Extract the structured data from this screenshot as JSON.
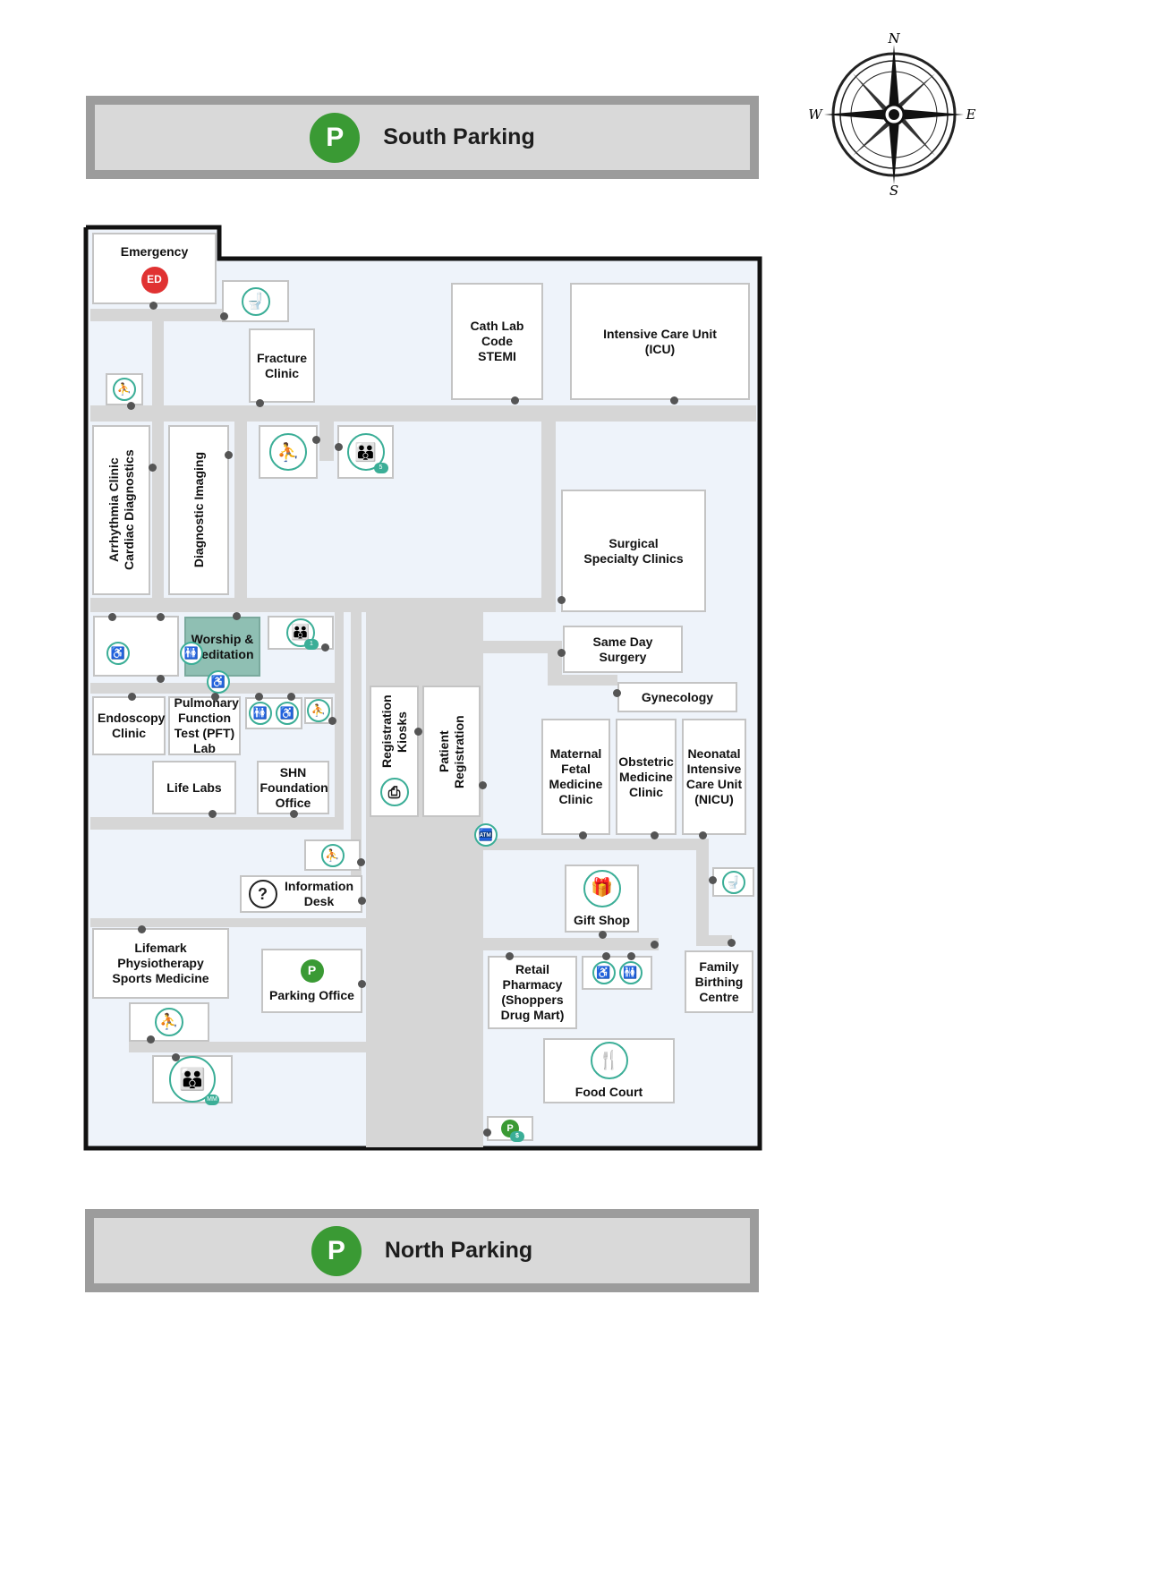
{
  "parking": {
    "south": {
      "label": "South Parking",
      "icon": "P"
    },
    "north": {
      "label": "North Parking",
      "icon": "P"
    }
  },
  "compass": {
    "n": "N",
    "s": "S",
    "e": "E",
    "w": "W"
  },
  "rooms": {
    "emergency": "Emergency",
    "ed_badge": "ED",
    "fracture": "Fracture Clinic",
    "cath_lab": "Cath Lab Code STEMI",
    "icu": "Intensive Care Unit (ICU)",
    "arrhythmia": "Arrhythmia Clinic Cardiac Diagnostics",
    "imaging": "Diagnostic Imaging",
    "surgical": "Surgical Specialty Clinics",
    "worship": "Worship & Meditation",
    "same_day": "Same Day Surgery",
    "gynecology": "Gynecology",
    "endoscopy": "Endoscopy Clinic",
    "pft": "Pulmonary Function Test (PFT) Lab",
    "reg_kiosks": "Registration Kiosks",
    "patient_reg": "Patient Registration",
    "maternal": "Maternal Fetal Medicine Clinic",
    "obstetric": "Obstetric Medicine Clinic",
    "nicu": "Neonatal Intensive Care Unit (NICU)",
    "life_labs": "Life Labs",
    "shn": "SHN Foundation Office",
    "info_desk": "Information Desk",
    "info_icon": "?",
    "gift_shop": "Gift Shop",
    "lifemark": "Lifemark Physiotherapy Sports Medicine",
    "parking_office": "Parking Office",
    "parking_office_icon": "P",
    "family_birthing": "Family Birthing Centre",
    "pharmacy": "Retail Pharmacy (Shoppers Drug Mart)",
    "food_court": "Food Court"
  },
  "elevator_badges": {
    "e1": "5",
    "e2": "1",
    "e3": "MM"
  },
  "pay_station_badge": "$",
  "icons": {
    "washroom": "washroom-icon",
    "accessible": "accessible-icon",
    "stairs": "stairs-icon",
    "elevator": "elevator-icon",
    "gift": "gift-icon",
    "food": "food-icon",
    "atm": "atm-icon",
    "kiosk": "kiosk-icon"
  },
  "colors": {
    "accent": "#3bae97",
    "parking": "#3a9a34",
    "emergency": "#e03232",
    "worship": "#8fbfb3"
  }
}
